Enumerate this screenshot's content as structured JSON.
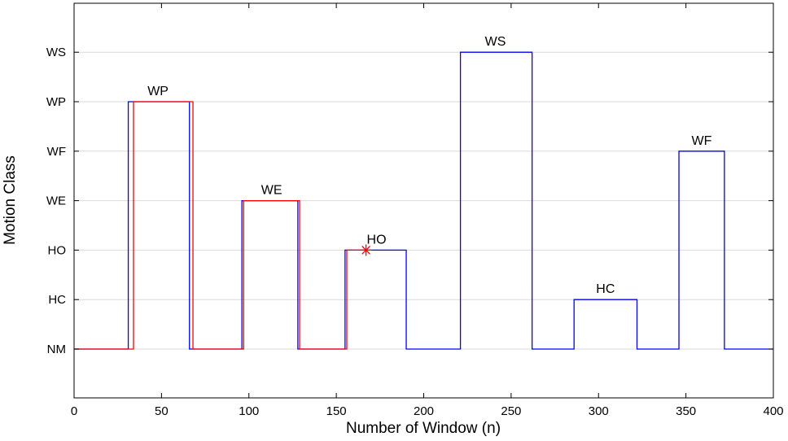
{
  "chart_data": {
    "type": "line",
    "xlabel": "Number of Window (n)",
    "ylabel": "Motion Class",
    "xlim": [
      0,
      400
    ],
    "x_ticks": [
      0,
      50,
      100,
      150,
      200,
      250,
      300,
      350,
      400
    ],
    "y_categories": [
      "NM",
      "HC",
      "HO",
      "WE",
      "WF",
      "WP",
      "WS"
    ],
    "grid": "horizontal",
    "series": [
      {
        "color": "#0000ff",
        "steps": [
          {
            "x0": 0,
            "x1": 31,
            "y": "NM"
          },
          {
            "x0": 31,
            "x1": 66,
            "y": "WP"
          },
          {
            "x0": 66,
            "x1": 96,
            "y": "NM"
          },
          {
            "x0": 96,
            "x1": 128,
            "y": "WE"
          },
          {
            "x0": 128,
            "x1": 155,
            "y": "NM"
          },
          {
            "x0": 155,
            "x1": 190,
            "y": "HO"
          },
          {
            "x0": 190,
            "x1": 221,
            "y": "NM"
          },
          {
            "x0": 221,
            "x1": 262,
            "y": "WS"
          },
          {
            "x0": 262,
            "x1": 286,
            "y": "NM"
          },
          {
            "x0": 286,
            "x1": 322,
            "y": "HC"
          },
          {
            "x0": 322,
            "x1": 346,
            "y": "NM"
          },
          {
            "x0": 346,
            "x1": 372,
            "y": "WF"
          },
          {
            "x0": 372,
            "x1": 400,
            "y": "NM"
          }
        ]
      },
      {
        "color": "#ff0000",
        "steps": [
          {
            "x0": 0,
            "x1": 34,
            "y": "NM"
          },
          {
            "x0": 34,
            "x1": 68,
            "y": "WP"
          },
          {
            "x0": 68,
            "x1": 97,
            "y": "NM"
          },
          {
            "x0": 97,
            "x1": 129,
            "y": "WE"
          },
          {
            "x0": 129,
            "x1": 156,
            "y": "NM"
          },
          {
            "x0": 156,
            "x1": 167,
            "y": "HO"
          }
        ],
        "end_marker": {
          "x": 167,
          "y": "HO",
          "symbol": "*"
        }
      }
    ],
    "annotations": [
      {
        "text": "WP",
        "x": 48,
        "y": "WP"
      },
      {
        "text": "WE",
        "x": 113,
        "y": "WE"
      },
      {
        "text": "HO",
        "x": 173,
        "y": "HO"
      },
      {
        "text": "WS",
        "x": 241,
        "y": "WS"
      },
      {
        "text": "HC",
        "x": 304,
        "y": "HC"
      },
      {
        "text": "WF",
        "x": 359,
        "y": "WF"
      }
    ]
  }
}
